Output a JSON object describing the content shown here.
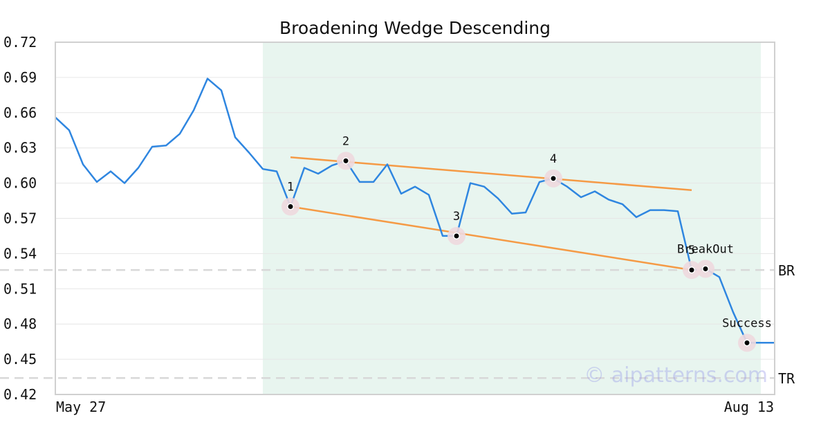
{
  "chart_data": {
    "type": "line",
    "title": "Broadening Wedge Descending",
    "xlabel": "",
    "ylabel": "",
    "ylim": [
      0.42,
      0.72
    ],
    "yticks": [
      "0.42",
      "0.45",
      "0.48",
      "0.51",
      "0.54",
      "0.57",
      "0.60",
      "0.63",
      "0.66",
      "0.69",
      "0.72"
    ],
    "xtick_labels": [
      "May 27",
      "Aug 13"
    ],
    "grid": true,
    "colors": {
      "price": "#2f86e0",
      "trendline": "#f59a45",
      "highlight_band": "#e8f5ef",
      "marker_halo": "#eed9de",
      "reference": "#d8d8d8"
    },
    "highlight_range": [
      15,
      51
    ],
    "series": [
      {
        "values": [
          0.656,
          0.645,
          0.616,
          0.601,
          0.61,
          0.6,
          0.613,
          0.631,
          0.632,
          0.642,
          0.662,
          0.689,
          0.679,
          0.639,
          0.626,
          0.612,
          0.61,
          0.58,
          0.613,
          0.608,
          0.615,
          0.619,
          0.601,
          0.601,
          0.616,
          0.591,
          0.597,
          0.59,
          0.555,
          0.555,
          0.6,
          0.597,
          0.587,
          0.574,
          0.575,
          0.601,
          0.604,
          0.597,
          0.588,
          0.593,
          0.586,
          0.582,
          0.571,
          0.577,
          0.577,
          0.576,
          0.526,
          0.527,
          0.52,
          0.49,
          0.464,
          0.464,
          0.464
        ]
      }
    ],
    "trendlines": [
      {
        "from": [
          17,
          0.622
        ],
        "to": [
          46,
          0.594
        ]
      },
      {
        "from": [
          17,
          0.58
        ],
        "to": [
          46,
          0.526
        ]
      }
    ],
    "reference_lines": [
      {
        "label": "BR",
        "value": 0.526
      },
      {
        "label": "TR",
        "value": 0.434
      }
    ],
    "points": [
      {
        "label": "1",
        "x": 17,
        "y": 0.58
      },
      {
        "label": "2",
        "x": 21,
        "y": 0.619
      },
      {
        "label": "3",
        "x": 29,
        "y": 0.555
      },
      {
        "label": "4",
        "x": 36,
        "y": 0.604
      },
      {
        "label": "5",
        "x": 46,
        "y": 0.526
      },
      {
        "label": "BreakOut",
        "x": 47,
        "y": 0.527
      },
      {
        "label": "Success",
        "x": 50,
        "y": 0.464
      }
    ],
    "watermark": "© aipatterns.com"
  }
}
